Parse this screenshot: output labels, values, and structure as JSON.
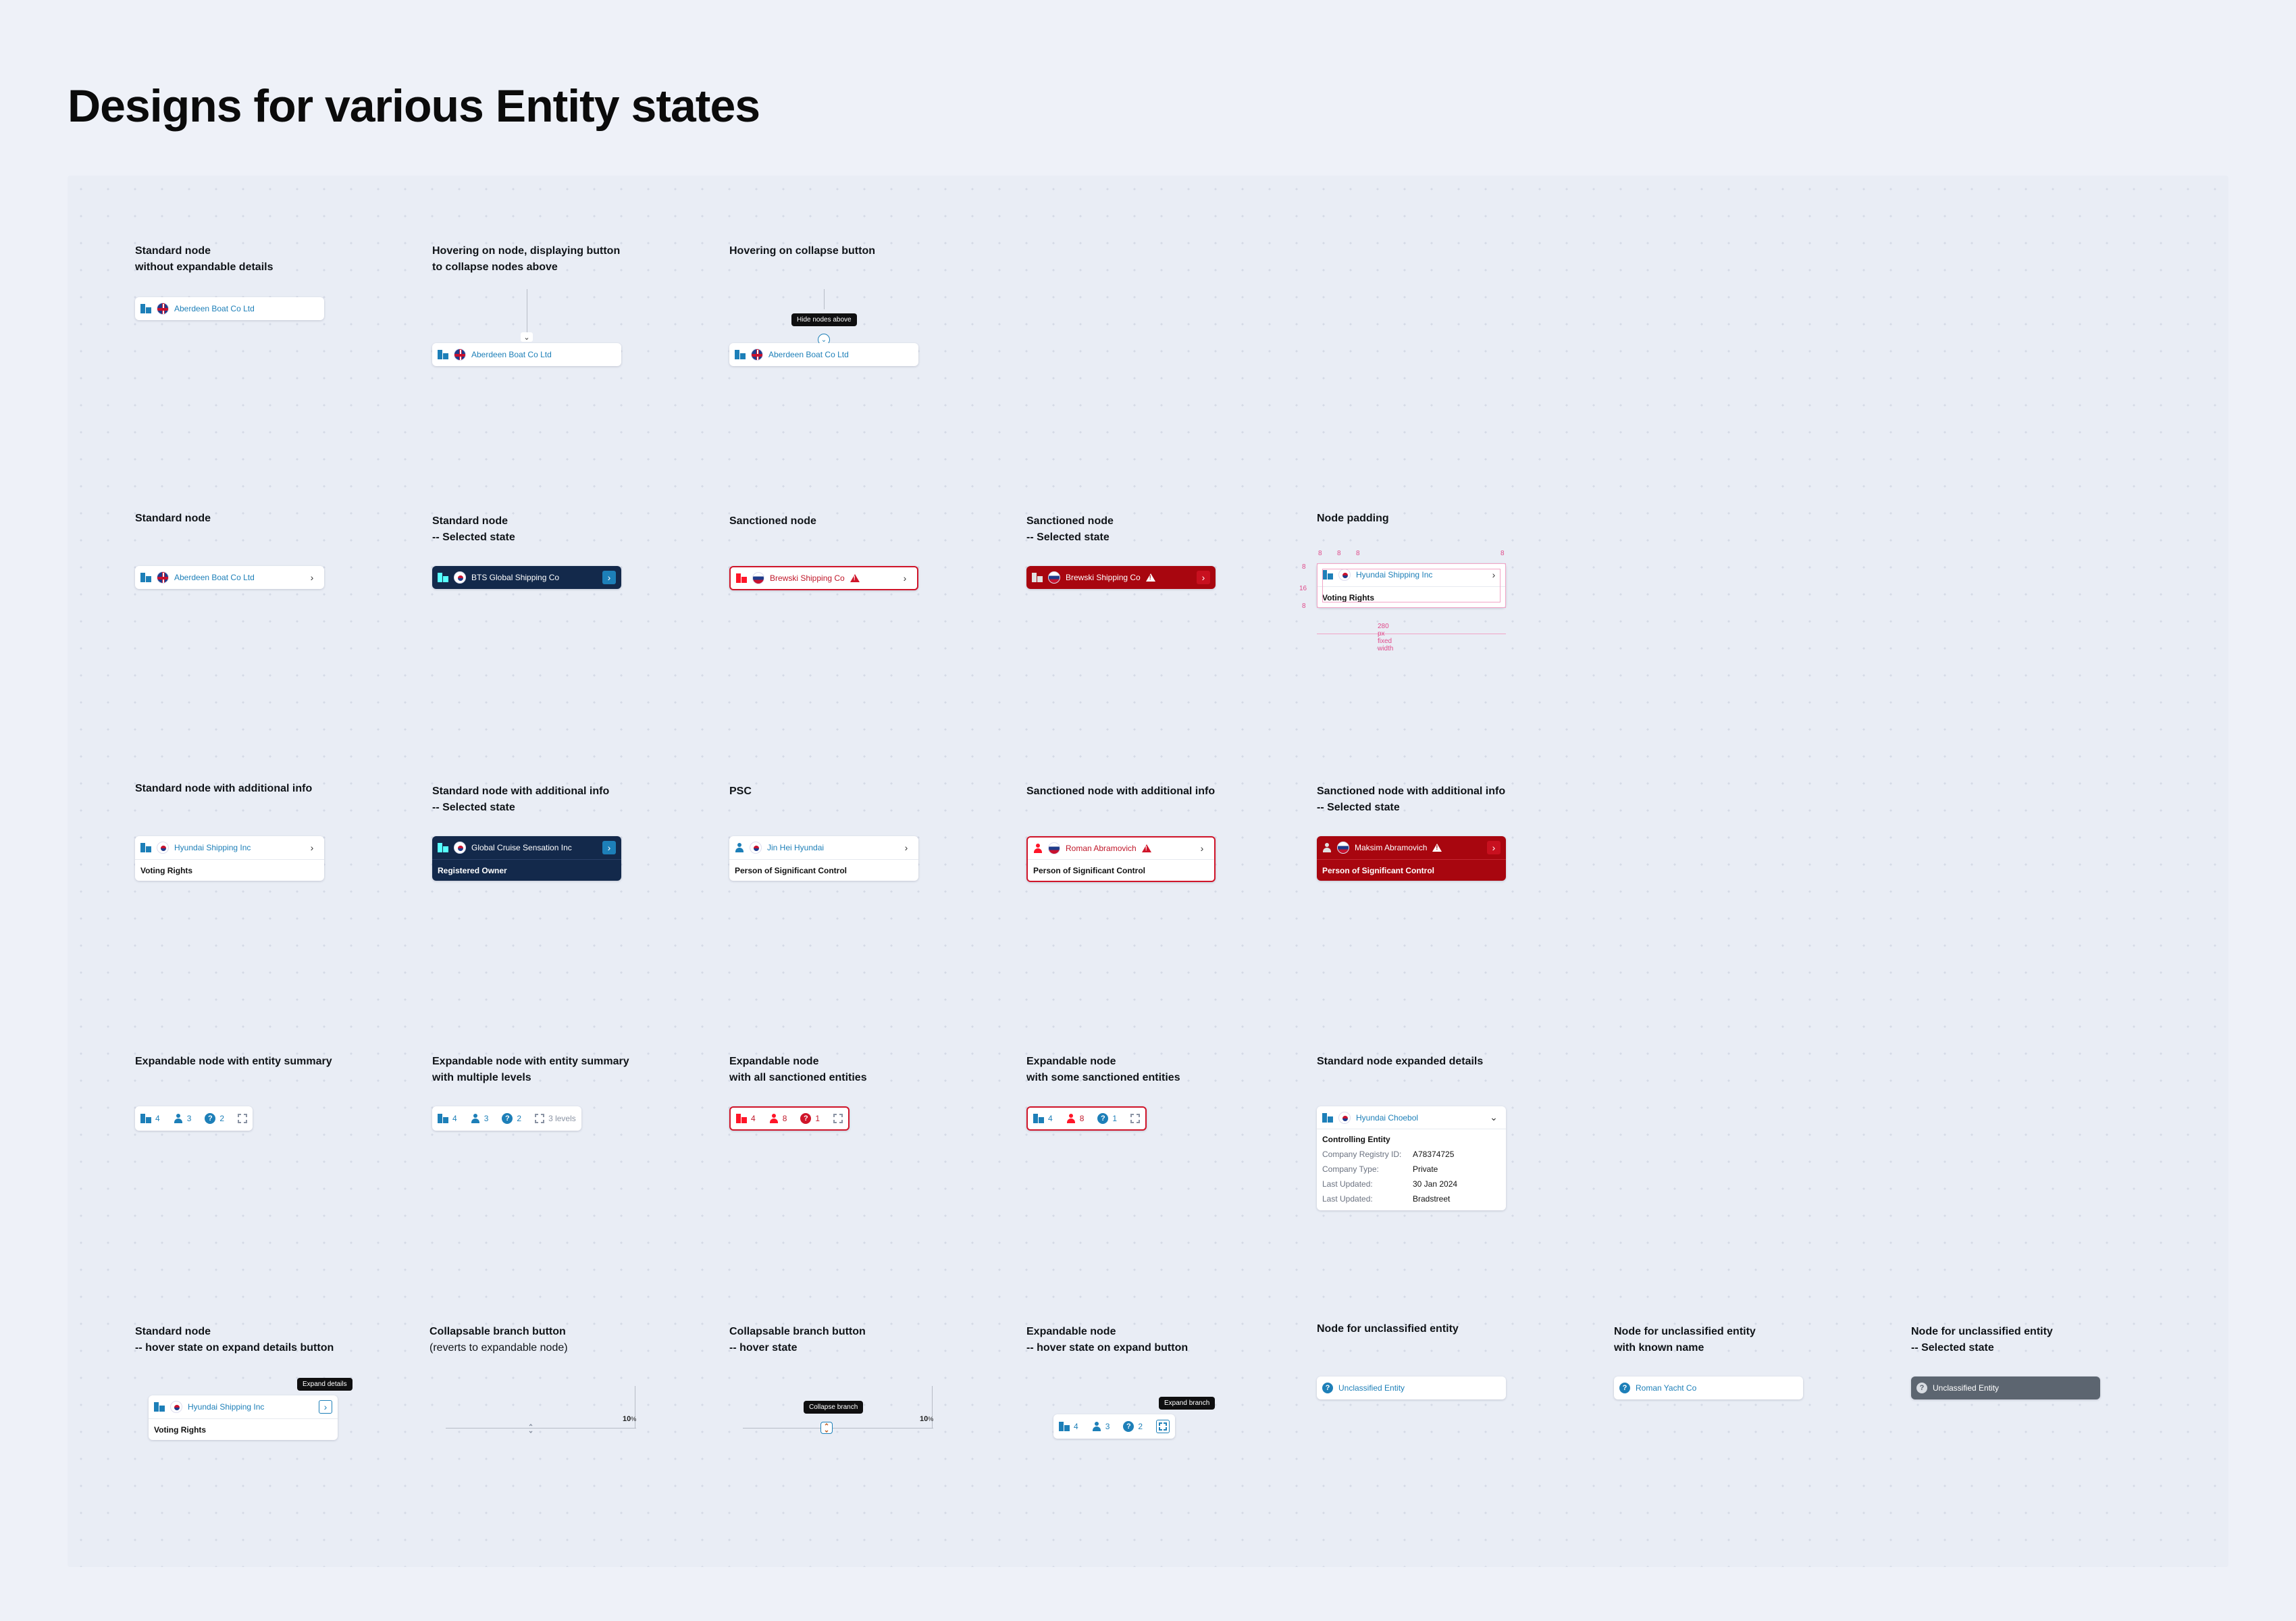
{
  "page_title": "Designs for various Entity states",
  "row1": {
    "c1": {
      "line1": "Standard node",
      "line2": "without expandable details",
      "node": "Aberdeen Boat Co Ltd"
    },
    "c2": {
      "line1": "Hovering on node, displaying button",
      "line2": "to collapse nodes above",
      "node": "Aberdeen Boat Co Ltd"
    },
    "c3": {
      "line1": "Hovering on collapse button",
      "node": "Aberdeen Boat Co Ltd",
      "tooltip": "Hide nodes above"
    }
  },
  "row2": {
    "c1": {
      "line1": "Standard node",
      "node": "Aberdeen Boat Co Ltd"
    },
    "c2": {
      "line1": "Standard node",
      "line2": "-- Selected state",
      "node": "BTS Global Shipping Co"
    },
    "c3": {
      "line1": "Sanctioned node",
      "node": "Brewski Shipping Co"
    },
    "c4": {
      "line1": "Sanctioned node",
      "line2": "-- Selected state",
      "node": "Brewski Shipping Co"
    },
    "c5": {
      "line1": "Node padding",
      "node": "Hyundai Shipping Inc",
      "sub": "Voting Rights",
      "pad_8": "8",
      "pad_16": "16",
      "width_note": "280 px fixed width"
    }
  },
  "row3": {
    "c1": {
      "line1": "Standard node with additional info",
      "node": "Hyundai Shipping Inc",
      "sub": "Voting Rights"
    },
    "c2": {
      "line1": "Standard node with additional info",
      "line2": "-- Selected state",
      "node": "Global Cruise Sensation Inc",
      "sub": "Registered Owner"
    },
    "c3": {
      "line1": "PSC",
      "node": "Jin Hei Hyundai",
      "sub": "Person of Significant Control"
    },
    "c4": {
      "line1": "Sanctioned node with additional info",
      "node": "Roman Abramovich",
      "sub": "Person of Significant Control"
    },
    "c5": {
      "line1": "Sanctioned node with additional info",
      "line2": "-- Selected state",
      "node": "Maksim Abramovich",
      "sub": "Person of Significant Control"
    }
  },
  "row4": {
    "c1": {
      "line1": "Expandable node with entity summary",
      "companies": "4",
      "people": "3",
      "unknown": "2"
    },
    "c2": {
      "line1": "Expandable node with entity summary",
      "line2": "with multiple levels",
      "companies": "4",
      "people": "3",
      "unknown": "2",
      "levels": "3 levels"
    },
    "c3": {
      "line1": "Expandable node",
      "line2": "with all sanctioned entities",
      "companies": "4",
      "people": "8",
      "unknown": "1"
    },
    "c4": {
      "line1": "Expandable node",
      "line2": "with some sanctioned entities",
      "companies": "4",
      "people": "8",
      "unknown": "1"
    },
    "c5": {
      "line1": "Standard node expanded details",
      "node": "Hyundai Choebol",
      "section": "Controlling Entity",
      "rows": [
        {
          "k": "Company Registry ID:",
          "v": "A78374725"
        },
        {
          "k": "Company Type:",
          "v": "Private"
        },
        {
          "k": "Last Updated:",
          "v": "30 Jan 2024"
        },
        {
          "k": "Last Updated:",
          "v": "Bradstreet"
        }
      ]
    }
  },
  "row5": {
    "c1": {
      "line1": "Standard node",
      "line2": "-- hover state on expand details button",
      "node": "Hyundai Shipping Inc",
      "sub": "Voting Rights",
      "tooltip": "Expand details"
    },
    "c2": {
      "line1": "Collapsable branch button",
      "line2": "(reverts to expandable node)",
      "pct": "10",
      "pct_unit": "%"
    },
    "c3": {
      "line1": "Collapsable branch button",
      "line2": "-- hover state",
      "pct": "10",
      "pct_unit": "%",
      "tooltip": "Collapse branch"
    },
    "c4": {
      "line1": "Expandable node",
      "line2": "-- hover state on expand button",
      "companies": "4",
      "people": "3",
      "unknown": "2",
      "tooltip": "Expand branch"
    },
    "c5": {
      "line1": "Node for unclassified entity",
      "node": "Unclassified Entity"
    },
    "c6": {
      "line1": "Node for unclassified entity",
      "line2": "with known name",
      "node": "Roman Yacht Co"
    },
    "c7": {
      "line1": "Node for unclassified entity",
      "line2": "-- Selected state",
      "node": "Unclassified Entity"
    }
  },
  "icons": {
    "chevron": "›",
    "chevron_down": "⌄",
    "question": "?"
  },
  "colors": {
    "accent": "#1d7fb8",
    "selected": "#13294b",
    "sanctioned": "#d0152a",
    "sanctioned_selected": "#a8060f",
    "unclassified_selected": "#5c6570"
  }
}
